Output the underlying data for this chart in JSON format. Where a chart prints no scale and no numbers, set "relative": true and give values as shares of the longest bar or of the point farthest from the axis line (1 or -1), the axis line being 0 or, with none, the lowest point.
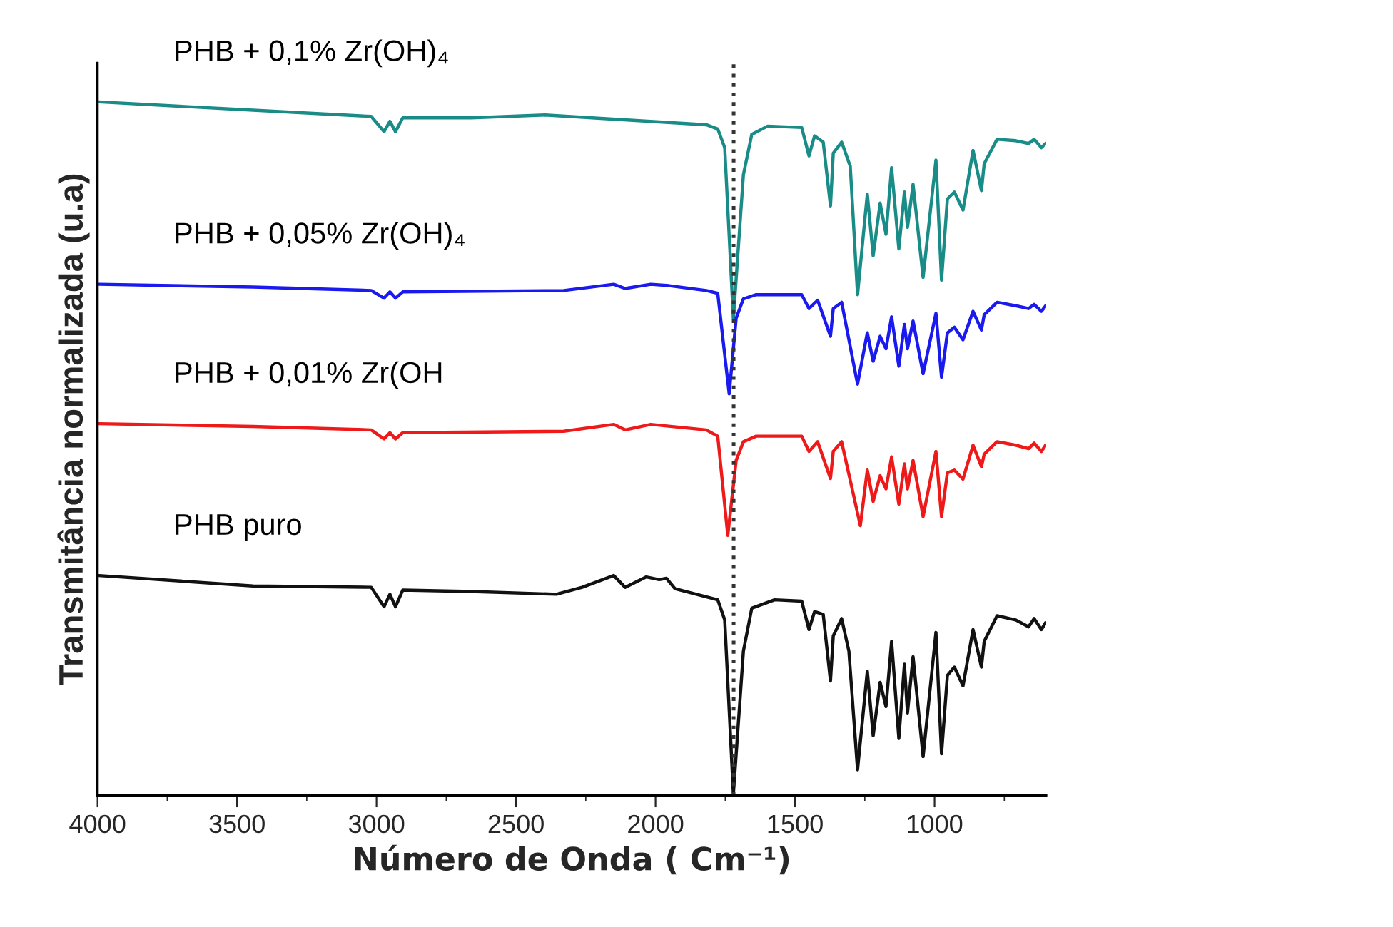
{
  "chart_data": {
    "type": "line",
    "relative": true,
    "xlabel": "Número de Onda ( Cm⁻¹)",
    "ylabel": "Transmitância normalizada (u.a)",
    "xlim": [
      4000,
      600
    ],
    "xticks": [
      4000,
      {
        "value": 3750,
        "label": null
      },
      3500,
      {
        "value": 3250,
        "label": null
      },
      3000,
      {
        "value": 2750,
        "label": null
      },
      2500,
      {
        "value": 2250,
        "label": null
      },
      2000,
      {
        "value": 1750,
        "label": null
      },
      1500,
      {
        "value": 1250,
        "label": null
      },
      1000,
      {
        "value": 750,
        "label": null
      }
    ],
    "grid": false,
    "legend": false,
    "marker": "none",
    "line_style": "solid",
    "ref_lines": [
      {
        "axis": "x",
        "value": 1720,
        "label": null,
        "color": "#333333",
        "line_style": "dotted"
      }
    ],
    "series": [
      {
        "name": "PHB + 0,1% Zr(OH)₄",
        "color": "#1a8c88",
        "x": [
          3995,
          3443,
          3019,
          2973,
          2952,
          2932,
          2906,
          2661,
          2396,
          1818,
          1777,
          1752,
          1721,
          1685,
          1655,
          1598,
          1476,
          1450,
          1430,
          1399,
          1373,
          1363,
          1333,
          1302,
          1276,
          1241,
          1220,
          1195,
          1174,
          1154,
          1128,
          1108,
          1097,
          1077,
          1041,
          995,
          975,
          954,
          929,
          898,
          862,
          832,
          822,
          776,
          709,
          663,
          643,
          617,
          602
        ],
        "values": [
          1.0,
          0.988,
          0.979,
          0.957,
          0.972,
          0.957,
          0.977,
          0.977,
          0.981,
          0.967,
          0.961,
          0.934,
          0.687,
          0.895,
          0.953,
          0.965,
          0.963,
          0.922,
          0.951,
          0.942,
          0.85,
          0.926,
          0.942,
          0.907,
          0.722,
          0.867,
          0.778,
          0.854,
          0.809,
          0.905,
          0.788,
          0.87,
          0.819,
          0.881,
          0.747,
          0.916,
          0.743,
          0.86,
          0.87,
          0.844,
          0.93,
          0.872,
          0.911,
          0.946,
          0.944,
          0.94,
          0.946,
          0.934,
          0.94
        ]
      },
      {
        "name": "PHB + 0,05% Zr(OH)₄",
        "color": "#1a1aee",
        "x": [
          3995,
          3443,
          3019,
          2973,
          2952,
          2932,
          2906,
          2329,
          2150,
          2109,
          2017,
          1951,
          1818,
          1777,
          1736,
          1711,
          1685,
          1639,
          1476,
          1450,
          1419,
          1373,
          1363,
          1333,
          1276,
          1241,
          1220,
          1195,
          1174,
          1154,
          1128,
          1108,
          1097,
          1077,
          1041,
          995,
          975,
          954,
          929,
          898,
          862,
          832,
          822,
          776,
          709,
          663,
          643,
          617,
          602
        ],
        "values": [
          0.737,
          0.733,
          0.728,
          0.717,
          0.726,
          0.717,
          0.726,
          0.728,
          0.737,
          0.731,
          0.737,
          0.735,
          0.728,
          0.724,
          0.579,
          0.688,
          0.716,
          0.722,
          0.722,
          0.702,
          0.714,
          0.662,
          0.702,
          0.711,
          0.593,
          0.667,
          0.626,
          0.662,
          0.644,
          0.69,
          0.619,
          0.679,
          0.644,
          0.684,
          0.608,
          0.695,
          0.603,
          0.667,
          0.675,
          0.657,
          0.698,
          0.671,
          0.693,
          0.711,
          0.706,
          0.702,
          0.708,
          0.698,
          0.706
        ]
      },
      {
        "name": "PHB + 0,01% Zr(OH",
        "color": "#ee1a1a",
        "x": [
          3995,
          3443,
          3019,
          2973,
          2952,
          2932,
          2906,
          2329,
          2150,
          2109,
          2017,
          1818,
          1777,
          1741,
          1711,
          1685,
          1639,
          1476,
          1450,
          1419,
          1373,
          1363,
          1333,
          1266,
          1241,
          1220,
          1195,
          1174,
          1154,
          1128,
          1108,
          1097,
          1077,
          1041,
          995,
          975,
          954,
          929,
          898,
          862,
          832,
          822,
          776,
          709,
          663,
          643,
          617,
          602
        ],
        "values": [
          0.536,
          0.532,
          0.527,
          0.514,
          0.523,
          0.514,
          0.523,
          0.525,
          0.535,
          0.527,
          0.535,
          0.527,
          0.518,
          0.375,
          0.483,
          0.51,
          0.518,
          0.518,
          0.496,
          0.51,
          0.457,
          0.496,
          0.51,
          0.389,
          0.469,
          0.424,
          0.461,
          0.442,
          0.488,
          0.42,
          0.478,
          0.442,
          0.483,
          0.402,
          0.496,
          0.402,
          0.465,
          0.469,
          0.456,
          0.505,
          0.474,
          0.492,
          0.51,
          0.505,
          0.5,
          0.508,
          0.496,
          0.505
        ]
      },
      {
        "name": "PHB puro",
        "color": "#111111",
        "x": [
          3995,
          3443,
          3019,
          2973,
          2952,
          2932,
          2906,
          2661,
          2355,
          2263,
          2150,
          2109,
          2033,
          1987,
          1961,
          1930,
          1777,
          1752,
          1721,
          1685,
          1655,
          1573,
          1476,
          1450,
          1430,
          1399,
          1373,
          1363,
          1333,
          1307,
          1276,
          1241,
          1220,
          1195,
          1174,
          1154,
          1128,
          1108,
          1097,
          1077,
          1041,
          995,
          975,
          954,
          929,
          898,
          862,
          832,
          822,
          776,
          709,
          663,
          643,
          617,
          602
        ],
        "values": [
          0.317,
          0.302,
          0.3,
          0.272,
          0.29,
          0.272,
          0.296,
          0.294,
          0.29,
          0.3,
          0.317,
          0.3,
          0.315,
          0.311,
          0.313,
          0.298,
          0.282,
          0.253,
          0.002,
          0.208,
          0.27,
          0.282,
          0.28,
          0.239,
          0.265,
          0.261,
          0.165,
          0.23,
          0.255,
          0.208,
          0.037,
          0.179,
          0.086,
          0.163,
          0.128,
          0.222,
          0.082,
          0.189,
          0.119,
          0.2,
          0.056,
          0.235,
          0.06,
          0.173,
          0.185,
          0.158,
          0.239,
          0.185,
          0.222,
          0.259,
          0.253,
          0.243,
          0.255,
          0.239,
          0.249
        ]
      }
    ]
  }
}
